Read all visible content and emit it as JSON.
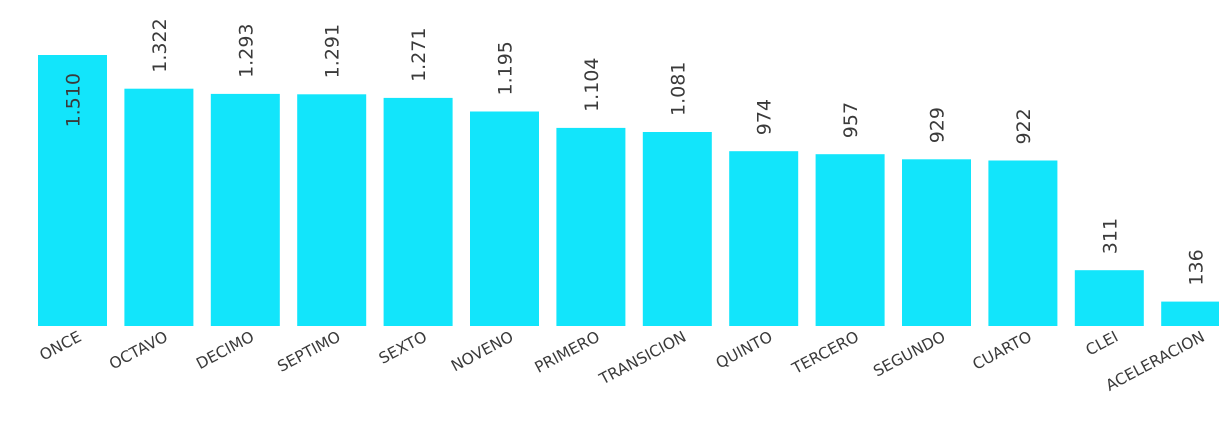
{
  "chart_data": {
    "type": "bar",
    "categories": [
      "ONCE",
      "OCTAVO",
      "DECIMO",
      "SEPTIMO",
      "SEXTO",
      "NOVENO",
      "PRIMERO",
      "TRANSICION",
      "QUINTO",
      "TERCERO",
      "SEGUNDO",
      "CUARTO",
      "CLEI",
      "ACELERACION"
    ],
    "values": [
      1510,
      1322,
      1293,
      1291,
      1271,
      1195,
      1104,
      1081,
      974,
      957,
      929,
      922,
      311,
      136
    ],
    "value_labels": [
      "1.510",
      "1.322",
      "1.293",
      "1.291",
      "1.271",
      "1.195",
      "1.104",
      "1.081",
      "974",
      "957",
      "929",
      "922",
      "311",
      "136"
    ],
    "title": "",
    "xlabel": "",
    "ylabel": "",
    "ylim": [
      0,
      1510
    ],
    "grid": false,
    "bar_color": "#12E5FB",
    "data_label_orientation": "vertical",
    "category_label_orientation": "rotated"
  }
}
